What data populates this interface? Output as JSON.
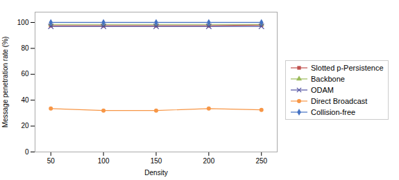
{
  "chart_data": {
    "type": "line",
    "x": [
      50,
      100,
      150,
      200,
      250
    ],
    "xlabel": "Density",
    "ylabel": "Message penetration rate (%)",
    "xlim": [
      35,
      265
    ],
    "ylim": [
      0,
      108
    ],
    "xticks": [
      50,
      100,
      150,
      200,
      250
    ],
    "yticks": [
      0,
      20,
      40,
      60,
      80,
      100
    ],
    "grid": false,
    "legend": "right",
    "series": [
      {
        "name": "Slotted p-Persistence",
        "color": "#C0504D",
        "marker": "square",
        "values": [
          97.5,
          97.5,
          97.5,
          97.5,
          98.0
        ]
      },
      {
        "name": "Backbone",
        "color": "#9BBB59",
        "marker": "triangle",
        "values": [
          98.5,
          98.5,
          98.5,
          98.5,
          98.5
        ]
      },
      {
        "name": "ODAM",
        "color": "#4F4FA0",
        "marker": "cross",
        "values": [
          97.0,
          97.0,
          97.0,
          97.0,
          97.0
        ]
      },
      {
        "name": "Direct Broadcast",
        "color": "#F79646",
        "marker": "circle",
        "values": [
          33.5,
          32.0,
          32.0,
          33.5,
          32.5
        ]
      },
      {
        "name": "Collision-free",
        "color": "#4472C4",
        "marker": "diamond",
        "values": [
          100.0,
          100.0,
          100.0,
          100.0,
          100.0
        ]
      }
    ]
  }
}
